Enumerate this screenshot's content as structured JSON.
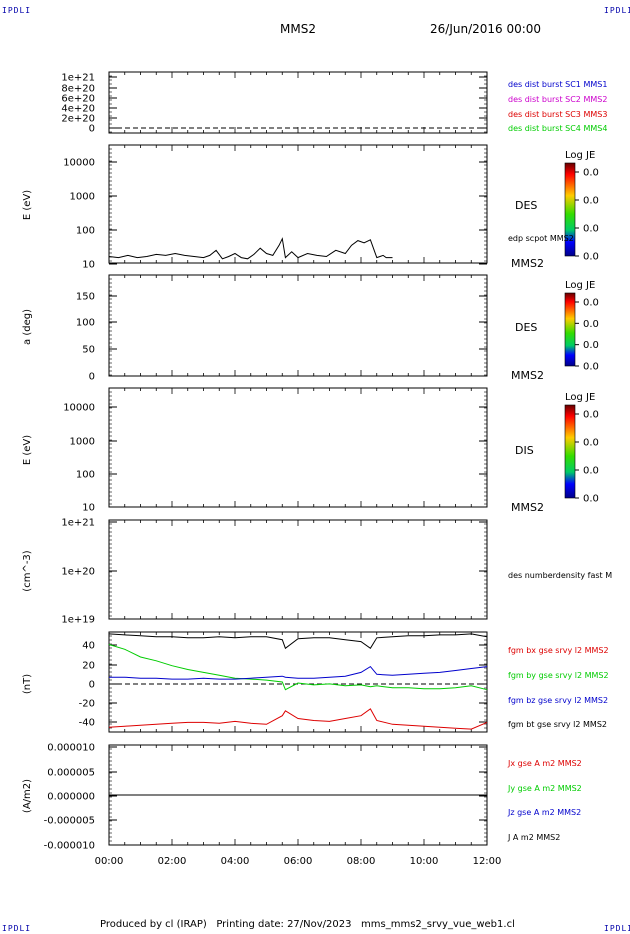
{
  "header": {
    "corner_tl": "IPDLI",
    "corner_tr": "IPDLI",
    "corner_bl": "IPDLI",
    "corner_br": "IPDLI",
    "spacecraft": "MMS2",
    "date": "26/Jun/2016 00:00"
  },
  "footer": {
    "text": "Produced by cl (IRAP)   Printing date: 27/Nov/2023   mms_mms2_srvy_vue_web1.cl"
  },
  "colors": {
    "black": "#000000",
    "blue": "#0000cc",
    "magenta": "#cc00cc",
    "red": "#dd0000",
    "green": "#00cc00"
  },
  "chart_data": [
    {
      "type": "line",
      "panel": "des-dist-burst",
      "ylabel": "",
      "yticks": [
        "1e+21",
        "8e+20",
        "6e+20",
        "4e+20",
        "2e+20",
        "0"
      ],
      "ylim": [
        0,
        1.1e+21
      ],
      "series": [
        {
          "name": "des dist burst SC1 MMS1",
          "color": "#0000cc",
          "values": []
        },
        {
          "name": "des dist burst SC2 MMS2",
          "color": "#cc00cc",
          "values": []
        },
        {
          "name": "des dist burst SC3 MMS3",
          "color": "#dd0000",
          "values": []
        },
        {
          "name": "des dist burst SC4 MMS4",
          "color": "#00cc00",
          "values": []
        }
      ]
    },
    {
      "type": "line",
      "panel": "des-energy",
      "ylabel": "E (eV)",
      "yscale": "log",
      "yticks": [
        "10000",
        "1000",
        "100",
        "10"
      ],
      "ylim": [
        10,
        15000
      ],
      "label": "DES",
      "unit_label": "MMS2",
      "colorbar": {
        "title": "Log JE",
        "ticks": [
          "0.0",
          "0.0",
          "0.0",
          "0.0"
        ]
      },
      "series": [
        {
          "name": "edp scpot MMS2",
          "color": "#000000",
          "x": [
            0.0,
            0.3,
            0.6,
            0.9,
            1.2,
            1.5,
            1.8,
            2.1,
            2.4,
            2.7,
            3.0,
            3.2,
            3.4,
            3.6,
            3.8,
            4.0,
            4.2,
            4.4,
            4.6,
            4.8,
            5.0,
            5.2,
            5.4,
            5.5,
            5.6,
            5.8,
            6.0,
            6.3,
            6.6,
            6.9,
            7.2,
            7.5,
            7.7,
            7.9,
            8.1,
            8.3,
            8.5,
            8.7,
            8.8,
            9.0
          ],
          "values": [
            15,
            14,
            16,
            14,
            15,
            17,
            16,
            18,
            16,
            15,
            14,
            16,
            22,
            13,
            15,
            18,
            14,
            13,
            17,
            25,
            18,
            16,
            30,
            45,
            14,
            20,
            14,
            18,
            16,
            15,
            22,
            18,
            30,
            40,
            35,
            42,
            14,
            16,
            14,
            14
          ]
        }
      ]
    },
    {
      "type": "line",
      "panel": "des-pitch",
      "ylabel": "a (deg)",
      "yticks": [
        "150",
        "100",
        "50",
        "0"
      ],
      "ylim": [
        0,
        180
      ],
      "label": "DES",
      "unit_label": "MMS2",
      "colorbar": {
        "title": "Log JE",
        "ticks": [
          "0.0",
          "0.0",
          "0.0",
          "0.0"
        ]
      },
      "series": []
    },
    {
      "type": "line",
      "panel": "dis-energy",
      "ylabel": "E (eV)",
      "yscale": "log",
      "yticks": [
        "10000",
        "1000",
        "100",
        "10"
      ],
      "ylim": [
        10,
        15000
      ],
      "label": "DIS",
      "unit_label": "MMS2",
      "colorbar": {
        "title": "Log JE",
        "ticks": [
          "0.0",
          "0.0",
          "0.0",
          "0.0"
        ]
      },
      "series": []
    },
    {
      "type": "line",
      "panel": "density",
      "ylabel": "(cm^-3)",
      "yscale": "log",
      "yticks": [
        "1e+21",
        "1e+20",
        "1e+19"
      ],
      "ylim": [
        1e+19,
        1e+21
      ],
      "series": [
        {
          "name": "des numberdensity fast M",
          "color": "#000000",
          "values": []
        }
      ]
    },
    {
      "type": "line",
      "panel": "fgm",
      "ylabel": "(nT)",
      "yticks": [
        "40",
        "20",
        "0",
        "-20",
        "-40"
      ],
      "ylim": [
        -52,
        52
      ],
      "x": [
        0,
        0.5,
        1,
        1.5,
        2,
        2.5,
        3,
        3.5,
        4,
        4.5,
        5,
        5.5,
        5.6,
        6,
        6.5,
        7,
        7.5,
        8,
        8.3,
        8.5,
        9,
        9.5,
        10,
        10.5,
        11,
        11.5,
        12
      ],
      "series": [
        {
          "name": "fgm bx gse srvy l2 MMS2",
          "color": "#dd0000",
          "values": [
            -47,
            -46,
            -45,
            -44,
            -43,
            -42,
            -42,
            -43,
            -41,
            -43,
            -44,
            -35,
            -30,
            -38,
            -40,
            -41,
            -38,
            -35,
            -28,
            -40,
            -44,
            -45,
            -46,
            -47,
            -48,
            -49,
            -42
          ]
        },
        {
          "name": "fgm by gse srvy l2 MMS2",
          "color": "#00cc00",
          "values": [
            39,
            34,
            26,
            22,
            17,
            13,
            10,
            7,
            4,
            3,
            2,
            0,
            -8,
            -1,
            -3,
            -2,
            -4,
            -3,
            -5,
            -4,
            -6,
            -6,
            -7,
            -7,
            -6,
            -4,
            -8
          ]
        },
        {
          "name": "fgm bz gse srvy l2 MMS2",
          "color": "#0000cc",
          "values": [
            5,
            5,
            4,
            4,
            3,
            3,
            4,
            3,
            3,
            4,
            5,
            6,
            5,
            4,
            4,
            5,
            6,
            10,
            16,
            8,
            7,
            8,
            9,
            10,
            12,
            14,
            16
          ]
        },
        {
          "name": "fgm bt gse srvy l2 MMS2",
          "color": "#000000",
          "values": [
            50,
            49,
            48,
            47,
            47,
            46,
            46,
            47,
            46,
            47,
            47,
            44,
            35,
            45,
            46,
            46,
            44,
            42,
            35,
            46,
            47,
            48,
            48,
            49,
            49,
            50,
            47
          ]
        }
      ]
    },
    {
      "type": "line",
      "panel": "current",
      "ylabel": "(A/m2)",
      "yticks": [
        "0.000010",
        "0.000005",
        "0.000000",
        "-0.000005",
        "-0.000010"
      ],
      "ylim": [
        -1e-05,
        1e-05
      ],
      "xlabel": "",
      "xticks": [
        "00:00",
        "02:00",
        "04:00",
        "06:00",
        "08:00",
        "10:00",
        "12:00"
      ],
      "xlim": [
        0,
        12
      ],
      "series": [
        {
          "name": "Jx gse A m2 MMS2",
          "color": "#dd0000",
          "values": [
            0,
            0
          ]
        },
        {
          "name": "Jy gse A m2 MMS2",
          "color": "#00cc00",
          "values": [
            0,
            0
          ]
        },
        {
          "name": "Jz gse A m2 MMS2",
          "color": "#0000cc",
          "values": [
            0,
            0
          ]
        },
        {
          "name": "J A m2 MMS2",
          "color": "#000000",
          "values": [
            0,
            0
          ]
        }
      ]
    }
  ]
}
